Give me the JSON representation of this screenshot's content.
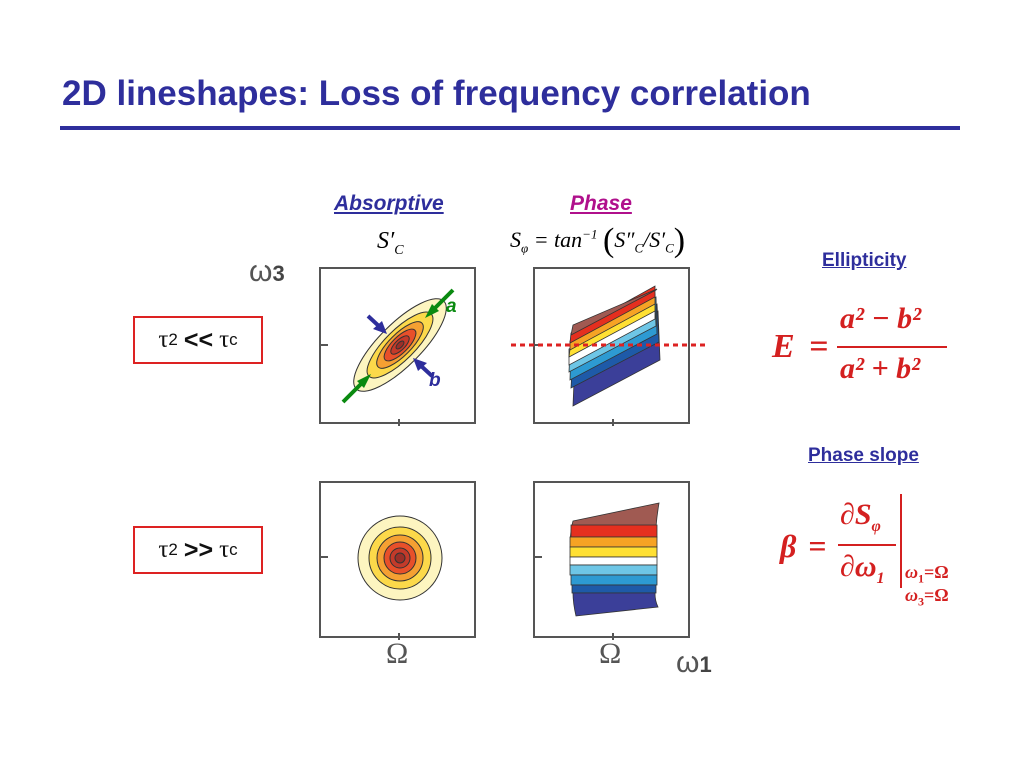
{
  "title": "2D lineshapes: Loss of frequency correlation",
  "columns": {
    "absorptive": "Absorptive",
    "phase": "Phase"
  },
  "formulas": {
    "absorptive_symbol": "S′",
    "absorptive_sub": "C",
    "phase_lhs": "S",
    "phase_lhs_sub": "φ",
    "phase_eq": "= tan",
    "phase_sup": "−1",
    "phase_num": "S″",
    "phase_num_sub": "C",
    "phase_slash": "/",
    "phase_den": "S′",
    "phase_den_sub": "C"
  },
  "axes": {
    "y_symbol": "ω",
    "y_sub": "3",
    "x_symbol": "ω",
    "x_sub": "1",
    "tick_left": "Ω",
    "tick_right": "Ω"
  },
  "conditions": [
    {
      "tau": "τ",
      "tau_sub": "2",
      "op": "<<",
      "tc": "τ",
      "tc_sub": "c"
    },
    {
      "tau": "τ",
      "tau_sub": "2",
      "op": ">>",
      "tc": "τ",
      "tc_sub": "c"
    }
  ],
  "annotations": {
    "a": "a",
    "b": "b"
  },
  "ellipticity": {
    "heading": "Ellipticity",
    "lhs": "E",
    "eq": "=",
    "num": "a² − b²",
    "den": "a² + b²"
  },
  "phase_slope": {
    "heading": "Phase slope",
    "lhs": "β",
    "eq": "=",
    "num": "∂S",
    "num_sub": "φ",
    "den": "∂ω",
    "den_sub": "1",
    "cond1": "ω",
    "cond1_sub": "1",
    "cond1_val": "=Ω",
    "cond2": "ω",
    "cond2_sub": "3",
    "cond2_val": "=Ω"
  },
  "colors": {
    "title": "#2e2e9c",
    "phase_label": "#b0108c",
    "equations": "#d42020",
    "annotation_a": "#0a8a10",
    "annotation_b": "#2e2e9c",
    "contour_levels": [
      "#fdf5c0",
      "#fcd94a",
      "#f5a032",
      "#e8502a",
      "#c43a2a",
      "#9b2f28"
    ],
    "phase_bands": [
      "#3b3f99",
      "#1e5aa8",
      "#2d9ad2",
      "#6ec6e6",
      "#ffffff",
      "#ffe033",
      "#f6a324",
      "#e52f1f",
      "#a05a52"
    ]
  }
}
